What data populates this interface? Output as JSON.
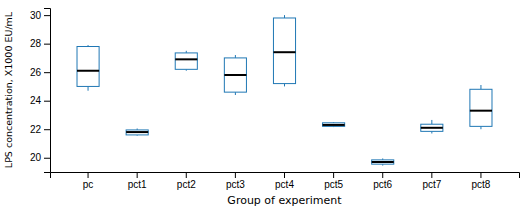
{
  "chart_data": {
    "type": "box",
    "categories": [
      "pc",
      "pct1",
      "pct2",
      "pct3",
      "pct4",
      "pct5",
      "pct6",
      "pct7",
      "pct8"
    ],
    "median": [
      26.1,
      21.8,
      26.9,
      25.8,
      27.4,
      22.3,
      19.7,
      22.1,
      23.3
    ],
    "q1": [
      25.0,
      21.6,
      26.2,
      24.6,
      25.2,
      22.2,
      19.55,
      21.85,
      22.2
    ],
    "q3": [
      27.8,
      21.95,
      27.35,
      27.0,
      29.8,
      22.45,
      19.85,
      22.35,
      24.8
    ],
    "whisker_low": [
      24.7,
      21.55,
      26.1,
      24.4,
      25.0,
      22.15,
      19.45,
      21.7,
      22.0
    ],
    "whisker_high": [
      27.9,
      22.05,
      27.5,
      27.2,
      30.0,
      22.5,
      19.95,
      22.65,
      25.1
    ],
    "x_label": "Group of experiment",
    "y_label": "LPS concentration, X1000 EU/mL",
    "ylim": [
      19.0,
      30.5
    ],
    "yticks": [
      20,
      22,
      24,
      26,
      28,
      30
    ],
    "grid": false
  }
}
